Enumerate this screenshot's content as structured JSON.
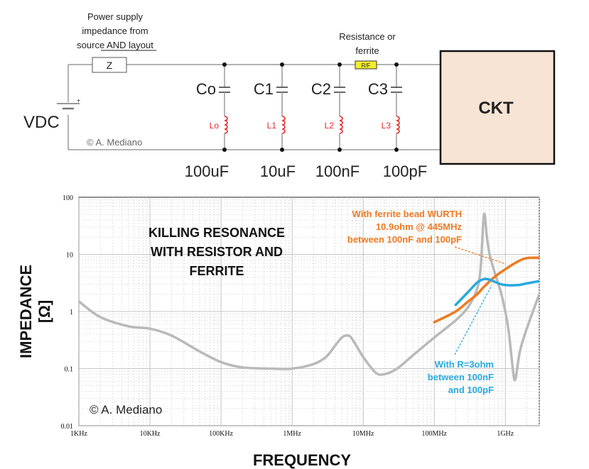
{
  "schematic": {
    "supply_note": [
      "Power supply",
      "impedance from",
      "source AND layout"
    ],
    "supply_note_underlined": "AND layout",
    "z_label": "Z",
    "vdc_label": "VDC",
    "plus_sign": "+",
    "copyright": "© A. Mediano",
    "resistor_note": [
      "Resistance or",
      "ferrite"
    ],
    "rf_label": "R/F",
    "ckt_label": "CKT",
    "capacitors": [
      {
        "name": "Co",
        "inductor": "Lo",
        "value": "100uF"
      },
      {
        "name": "C1",
        "inductor": "L1",
        "value": "10uF"
      },
      {
        "name": "C2",
        "inductor": "L2",
        "value": "100nF"
      },
      {
        "name": "C3",
        "inductor": "L3",
        "value": "100pF"
      }
    ],
    "colors": {
      "ckt_fill": "#f7e4d4",
      "rf_fill": "#f2ee2b",
      "inductor": "#e8282a",
      "wire": "#9a9a9a"
    }
  },
  "chart_data": {
    "type": "line",
    "title": [
      "KILLING RESONANCE",
      "WITH RESISTOR AND",
      "FERRITE"
    ],
    "xlabel": "FREQUENCY",
    "ylabel": [
      "IMPEDANCE",
      "[Ω]"
    ],
    "xscale": "log",
    "yscale": "log",
    "xlim": [
      1000,
      3000000000
    ],
    "ylim": [
      0.01,
      100
    ],
    "xticks": [
      "1KHz",
      "10KHz",
      "100KHz",
      "1MHz",
      "10MHz",
      "100MHz",
      "1GHz"
    ],
    "yticks": [
      "100",
      "10",
      "1",
      "0.1",
      "0.01"
    ],
    "grid": true,
    "copyright": "© A. Mediano",
    "annotations": [
      {
        "lines": [
          "With ferrite bead WURTH",
          "10.9ohm @ 445MHz",
          "between 100nF and 100pF"
        ],
        "color": "#f07a22"
      },
      {
        "lines": [
          "With R=3ohm",
          "between 100nF",
          "and 100pF"
        ],
        "color": "#27a9e1"
      }
    ],
    "series": [
      {
        "color": "#b9b9b9",
        "x": [
          1000,
          2000,
          5000,
          10000,
          20000,
          50000,
          100000,
          200000,
          500000,
          1000000,
          2000000,
          3000000,
          4000000,
          5000000,
          6000000,
          7000000,
          10000000,
          15000000,
          20000000,
          30000000,
          50000000,
          100000000,
          200000000,
          300000000,
          400000000,
          450000000,
          500000000,
          550000000,
          600000000,
          700000000,
          900000000,
          1100000000,
          1300000000,
          1400000000,
          1600000000,
          2000000000,
          3000000000
        ],
        "y": [
          1.5,
          0.8,
          0.55,
          0.5,
          0.38,
          0.2,
          0.13,
          0.105,
          0.1,
          0.1,
          0.12,
          0.16,
          0.25,
          0.35,
          0.38,
          0.33,
          0.16,
          0.085,
          0.08,
          0.1,
          0.17,
          0.35,
          0.7,
          1.2,
          2.5,
          6,
          50,
          20,
          10,
          5,
          1.8,
          0.5,
          0.08,
          0.07,
          0.2,
          0.5,
          2
        ]
      },
      {
        "color": "#f07a22",
        "x": [
          100000000,
          200000000,
          300000000,
          400000000,
          500000000,
          700000000,
          1000000000,
          1500000000,
          2000000000,
          3000000000
        ],
        "y": [
          0.65,
          1.0,
          1.5,
          2.0,
          2.7,
          4.0,
          5.5,
          7.5,
          8.6,
          8.7
        ]
      },
      {
        "color": "#27a9e1",
        "x": [
          200000000,
          300000000,
          400000000,
          500000000,
          600000000,
          800000000,
          1000000000,
          1500000000,
          2000000000,
          3000000000
        ],
        "y": [
          1.3,
          2.2,
          3.2,
          3.7,
          3.6,
          3.1,
          2.9,
          2.9,
          3.1,
          3.4
        ]
      }
    ]
  }
}
